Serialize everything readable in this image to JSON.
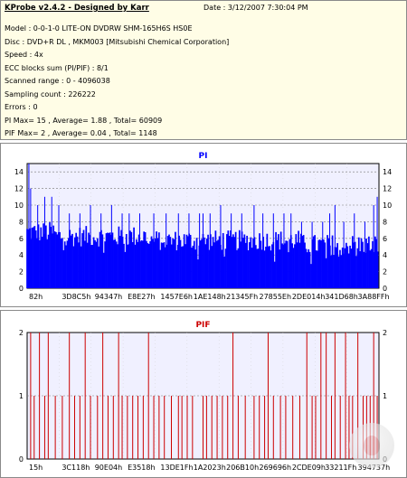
{
  "info": {
    "title": "KProbe v2.4.2 - Designed by Karr",
    "date": "Date : 3/12/2007 7:30:04 PM",
    "lines": [
      "Model : 0-0-1-0 LITE-ON DVDRW SHM-165H6S HS0E",
      "Disc : DVD+R DL , MKM003 [Mitsubishi Chemical Corporation]",
      "Speed : 4x",
      "ECC blocks sum (PI/PIF) : 8/1",
      "Scanned range : 0 - 4096038",
      "Sampling count : 226222",
      "Errors : 0",
      "PI Max= 15 , Average= 1.88 , Total= 60909",
      "PIF Max= 2 , Average= 0.04 , Total= 1148"
    ]
  },
  "chart_data": [
    {
      "type": "bar",
      "title": "PI",
      "ylim": [
        0,
        15
      ],
      "yticks": [
        0,
        2,
        4,
        6,
        8,
        10,
        12,
        14
      ],
      "x_tick_labels": [
        "82h",
        "3D8C5h",
        "94347h",
        "E8E27h",
        "1457E6h",
        "1AE148h",
        "21345Fh",
        "27855Eh",
        "2DE014h",
        "341D68h",
        "3A88FFh"
      ],
      "grid": true,
      "color": "#0000ff",
      "background": "#f0f0ff",
      "summary": {
        "max": 15,
        "average": 1.88,
        "total": 60909
      },
      "baseline_segments": [
        {
          "from": 0.0,
          "to": 0.08,
          "low": 5.5,
          "high": 8.0
        },
        {
          "from": 0.08,
          "to": 0.35,
          "low": 5.0,
          "high": 7.5
        },
        {
          "from": 0.35,
          "to": 0.78,
          "low": 4.5,
          "high": 7.0
        },
        {
          "from": 0.78,
          "to": 1.0,
          "low": 4.0,
          "high": 6.5
        }
      ],
      "spikes": [
        {
          "x": 0.005,
          "y": 15
        },
        {
          "x": 0.01,
          "y": 12
        },
        {
          "x": 0.03,
          "y": 10
        },
        {
          "x": 0.05,
          "y": 11
        },
        {
          "x": 0.07,
          "y": 11
        },
        {
          "x": 0.09,
          "y": 10
        },
        {
          "x": 0.12,
          "y": 9
        },
        {
          "x": 0.15,
          "y": 9
        },
        {
          "x": 0.18,
          "y": 10
        },
        {
          "x": 0.21,
          "y": 9
        },
        {
          "x": 0.24,
          "y": 10
        },
        {
          "x": 0.27,
          "y": 9
        },
        {
          "x": 0.29,
          "y": 9
        },
        {
          "x": 0.32,
          "y": 9
        },
        {
          "x": 0.36,
          "y": 9
        },
        {
          "x": 0.395,
          "y": 9
        },
        {
          "x": 0.43,
          "y": 9
        },
        {
          "x": 0.46,
          "y": 9
        },
        {
          "x": 0.49,
          "y": 9
        },
        {
          "x": 0.5,
          "y": 9
        },
        {
          "x": 0.52,
          "y": 9
        },
        {
          "x": 0.55,
          "y": 10
        },
        {
          "x": 0.58,
          "y": 9
        },
        {
          "x": 0.61,
          "y": 9
        },
        {
          "x": 0.645,
          "y": 10
        },
        {
          "x": 0.67,
          "y": 9
        },
        {
          "x": 0.7,
          "y": 9
        },
        {
          "x": 0.73,
          "y": 9
        },
        {
          "x": 0.75,
          "y": 9
        },
        {
          "x": 0.78,
          "y": 8
        },
        {
          "x": 0.81,
          "y": 8
        },
        {
          "x": 0.84,
          "y": 8
        },
        {
          "x": 0.86,
          "y": 9
        },
        {
          "x": 0.875,
          "y": 10
        },
        {
          "x": 0.9,
          "y": 8
        },
        {
          "x": 0.93,
          "y": 9
        },
        {
          "x": 0.96,
          "y": 8
        },
        {
          "x": 0.985,
          "y": 10
        },
        {
          "x": 0.995,
          "y": 11
        }
      ]
    },
    {
      "type": "bar",
      "title": "PIF",
      "ylim": [
        0,
        2
      ],
      "yticks": [
        0,
        1,
        2
      ],
      "x_tick_labels": [
        "15h",
        "3C118h",
        "90E04h",
        "E3518h",
        "13DE1Fh",
        "1A2023h",
        "206B10h",
        "269696h",
        "2CDE09h",
        "33211Fh",
        "394737h"
      ],
      "grid": true,
      "color": "#cc0000",
      "background": "#f0f0ff",
      "summary": {
        "max": 2,
        "average": 0.04,
        "total": 1148
      },
      "bars": [
        {
          "x": 0.01,
          "y": 2
        },
        {
          "x": 0.02,
          "y": 1
        },
        {
          "x": 0.035,
          "y": 2
        },
        {
          "x": 0.05,
          "y": 1
        },
        {
          "x": 0.06,
          "y": 2
        },
        {
          "x": 0.08,
          "y": 1
        },
        {
          "x": 0.1,
          "y": 1
        },
        {
          "x": 0.12,
          "y": 2
        },
        {
          "x": 0.135,
          "y": 1
        },
        {
          "x": 0.15,
          "y": 1
        },
        {
          "x": 0.165,
          "y": 2
        },
        {
          "x": 0.18,
          "y": 1
        },
        {
          "x": 0.2,
          "y": 1
        },
        {
          "x": 0.215,
          "y": 2
        },
        {
          "x": 0.23,
          "y": 1
        },
        {
          "x": 0.245,
          "y": 1
        },
        {
          "x": 0.26,
          "y": 2
        },
        {
          "x": 0.27,
          "y": 1
        },
        {
          "x": 0.285,
          "y": 1
        },
        {
          "x": 0.3,
          "y": 1
        },
        {
          "x": 0.315,
          "y": 1
        },
        {
          "x": 0.33,
          "y": 1
        },
        {
          "x": 0.345,
          "y": 2
        },
        {
          "x": 0.36,
          "y": 1
        },
        {
          "x": 0.375,
          "y": 1
        },
        {
          "x": 0.39,
          "y": 1
        },
        {
          "x": 0.41,
          "y": 1
        },
        {
          "x": 0.43,
          "y": 1
        },
        {
          "x": 0.44,
          "y": 1
        },
        {
          "x": 0.455,
          "y": 1
        },
        {
          "x": 0.47,
          "y": 1
        },
        {
          "x": 0.5,
          "y": 1
        },
        {
          "x": 0.51,
          "y": 1
        },
        {
          "x": 0.525,
          "y": 1
        },
        {
          "x": 0.54,
          "y": 1
        },
        {
          "x": 0.555,
          "y": 1
        },
        {
          "x": 0.57,
          "y": 1
        },
        {
          "x": 0.585,
          "y": 2
        },
        {
          "x": 0.6,
          "y": 1
        },
        {
          "x": 0.62,
          "y": 1
        },
        {
          "x": 0.645,
          "y": 1
        },
        {
          "x": 0.66,
          "y": 1
        },
        {
          "x": 0.675,
          "y": 1
        },
        {
          "x": 0.685,
          "y": 2
        },
        {
          "x": 0.7,
          "y": 1
        },
        {
          "x": 0.72,
          "y": 1
        },
        {
          "x": 0.735,
          "y": 1
        },
        {
          "x": 0.755,
          "y": 1
        },
        {
          "x": 0.775,
          "y": 1
        },
        {
          "x": 0.795,
          "y": 2
        },
        {
          "x": 0.81,
          "y": 1
        },
        {
          "x": 0.82,
          "y": 1
        },
        {
          "x": 0.835,
          "y": 2
        },
        {
          "x": 0.85,
          "y": 2
        },
        {
          "x": 0.865,
          "y": 1
        },
        {
          "x": 0.875,
          "y": 2
        },
        {
          "x": 0.89,
          "y": 1
        },
        {
          "x": 0.905,
          "y": 2
        },
        {
          "x": 0.915,
          "y": 1
        },
        {
          "x": 0.925,
          "y": 1
        },
        {
          "x": 0.94,
          "y": 2
        },
        {
          "x": 0.955,
          "y": 1
        },
        {
          "x": 0.965,
          "y": 1
        },
        {
          "x": 0.975,
          "y": 1
        },
        {
          "x": 0.985,
          "y": 2
        },
        {
          "x": 0.995,
          "y": 1
        }
      ]
    }
  ]
}
